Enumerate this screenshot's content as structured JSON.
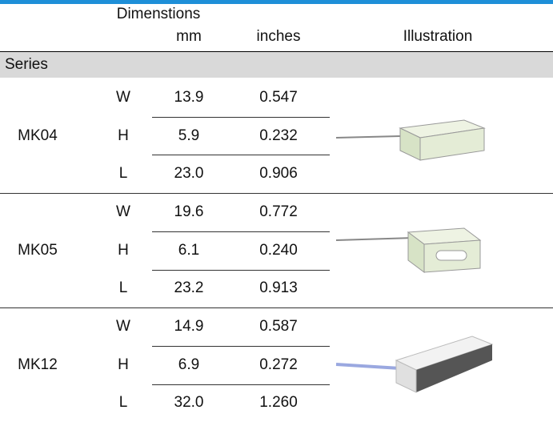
{
  "header": {
    "group": "Dimenstions",
    "mm": "mm",
    "inches": "inches",
    "illustration": "Illustration",
    "series": "Series"
  },
  "table": {
    "rows": [
      {
        "series": "MK04",
        "dims": [
          [
            "W",
            "13.9",
            "0.547"
          ],
          [
            "H",
            "5.9",
            "0.232"
          ],
          [
            "L",
            "23.0",
            "0.906"
          ]
        ]
      },
      {
        "series": "MK05",
        "dims": [
          [
            "W",
            "19.6",
            "0.772"
          ],
          [
            "H",
            "6.1",
            "0.240"
          ],
          [
            "L",
            "23.2",
            "0.913"
          ]
        ]
      },
      {
        "series": "MK12",
        "dims": [
          [
            "W",
            "14.9",
            "0.587"
          ],
          [
            "H",
            "6.9",
            "0.272"
          ],
          [
            "L",
            "32.0",
            "1.260"
          ]
        ]
      }
    ]
  }
}
